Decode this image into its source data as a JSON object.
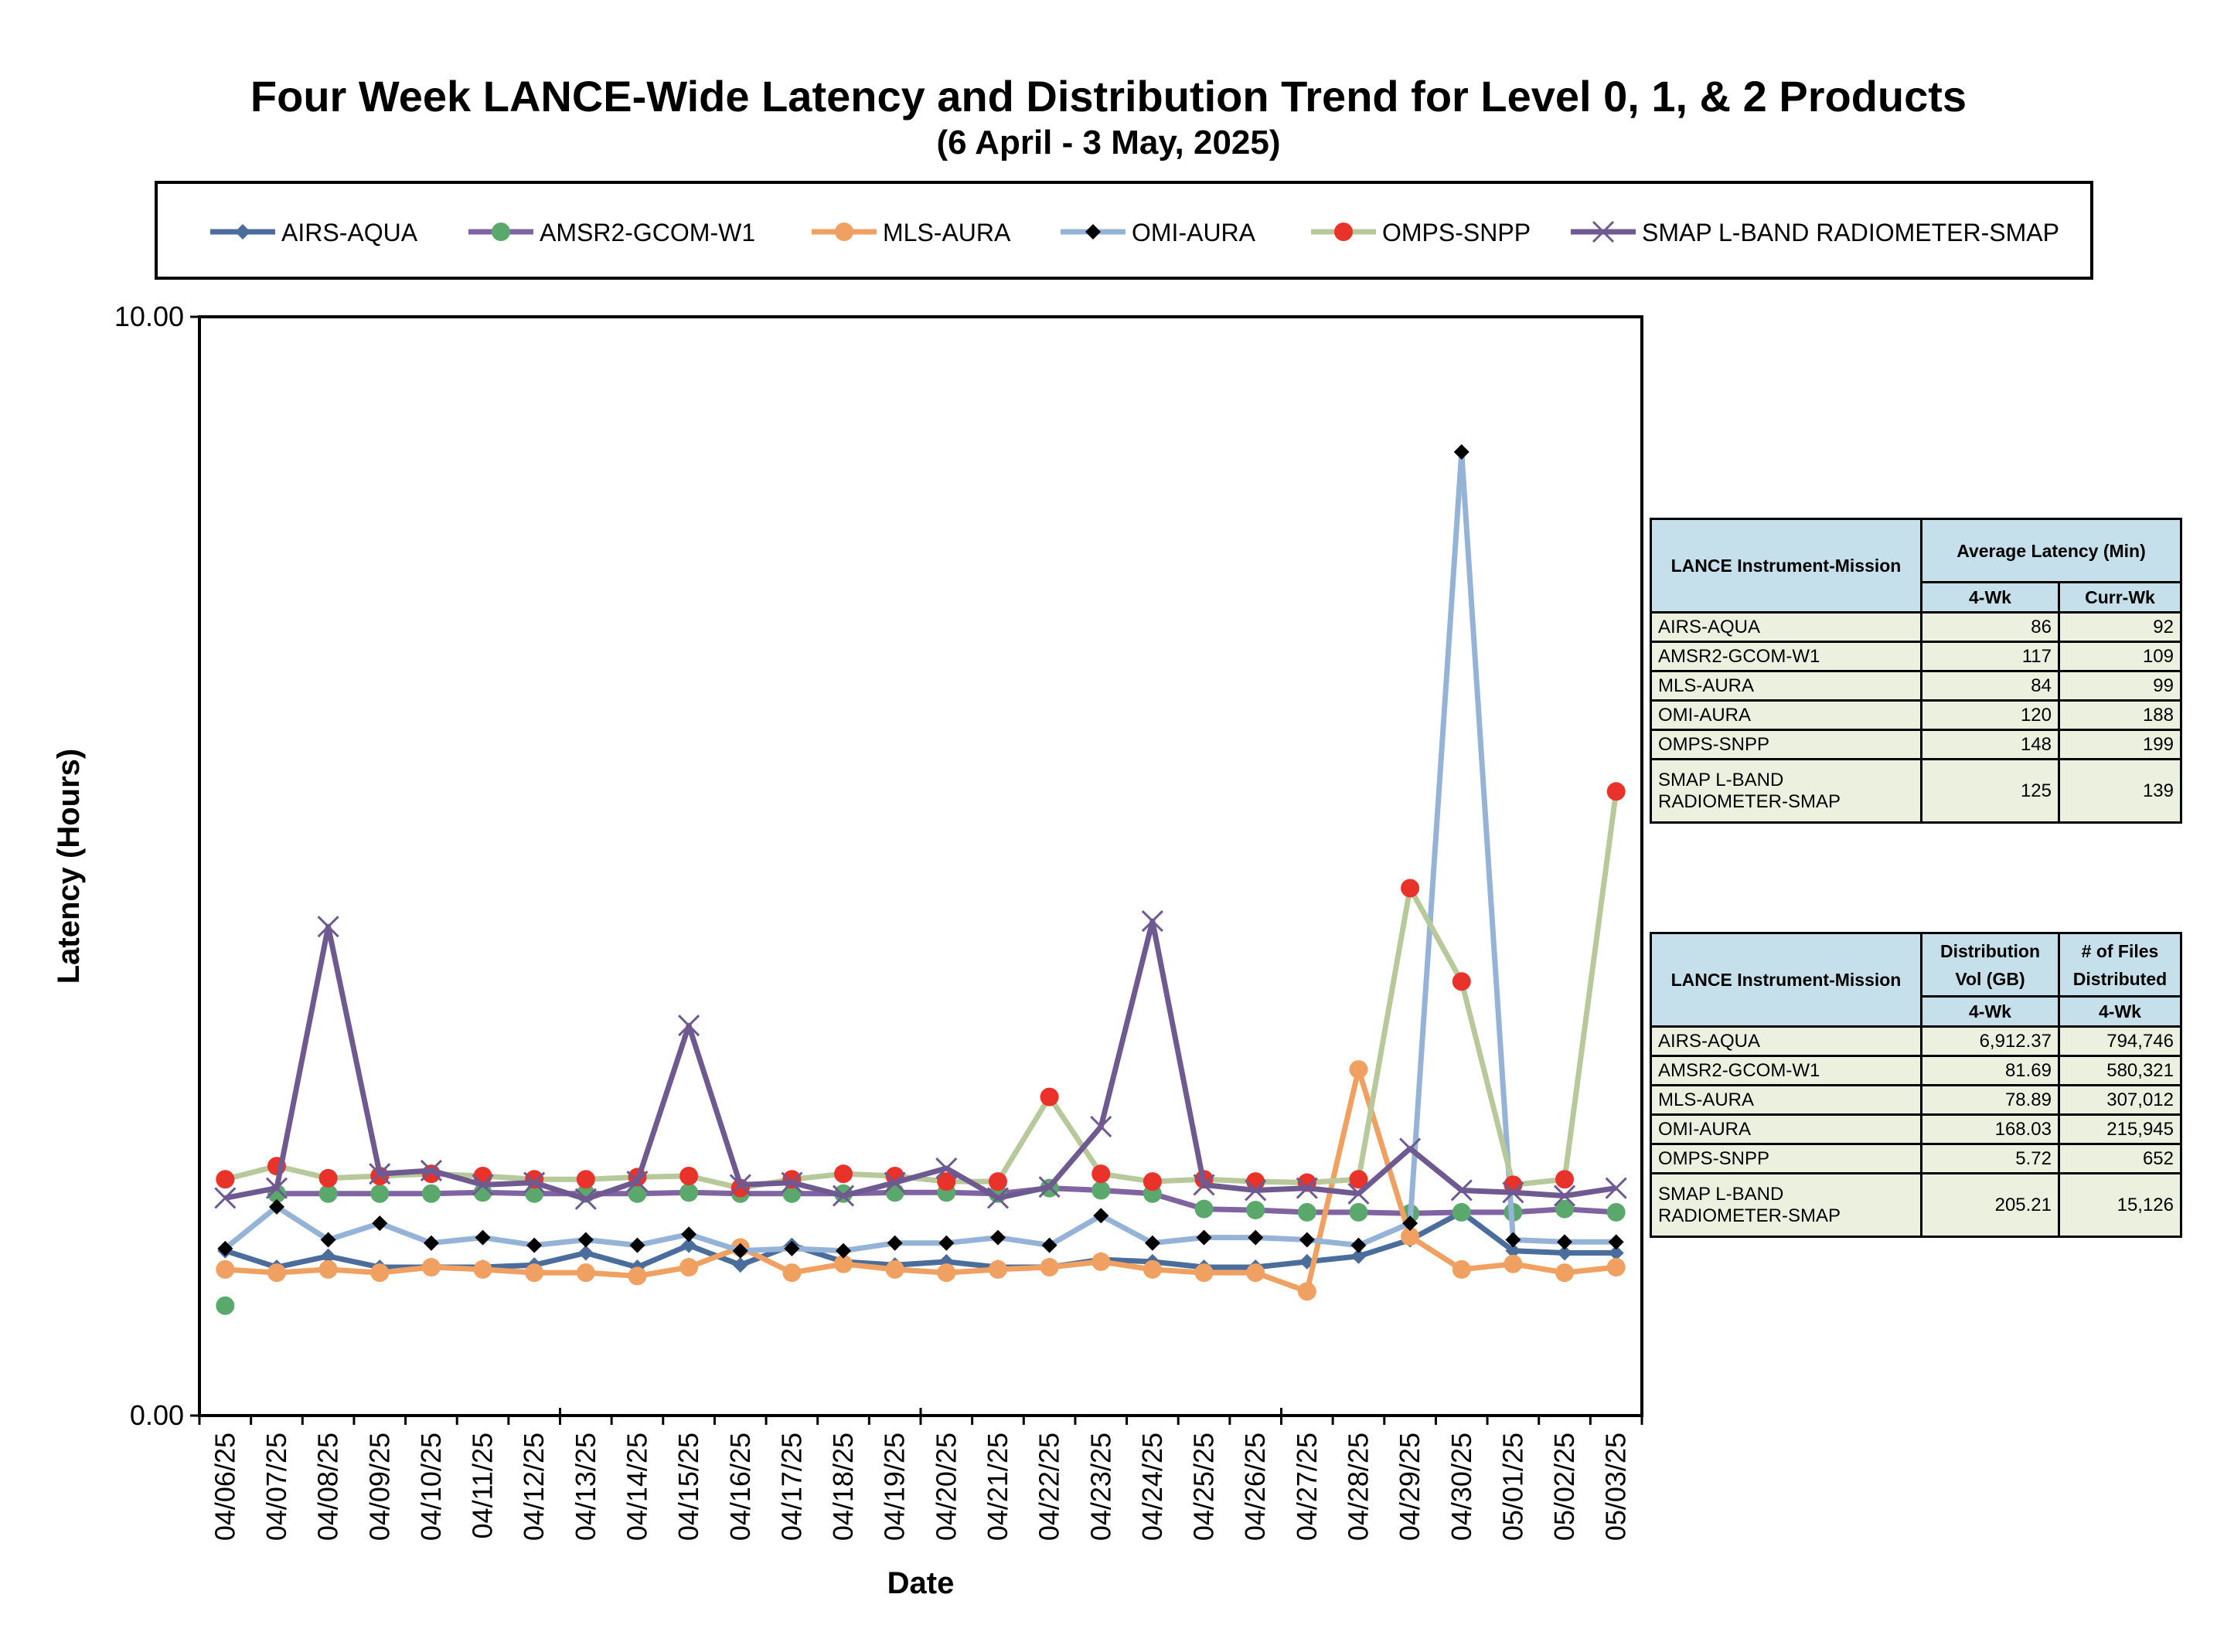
{
  "chart_data": {
    "type": "line",
    "title": "Four Week LANCE-Wide Latency and Distribution Trend for Level 0, 1, & 2 Products",
    "subtitle": "(6  April    -  3  May,  2025)",
    "xlabel": "Date",
    "ylabel": "Latency (Hours)",
    "ylim": [
      0,
      10
    ],
    "y_tick_labels": [
      "0.00",
      "10.00"
    ],
    "categories": [
      "04/06/25",
      "04/07/25",
      "04/08/25",
      "04/09/25",
      "04/10/25",
      "04/11/25",
      "04/12/25",
      "04/13/25",
      "04/14/25",
      "04/15/25",
      "04/16/25",
      "04/17/25",
      "04/18/25",
      "04/19/25",
      "04/20/25",
      "04/21/25",
      "04/22/25",
      "04/23/25",
      "04/24/25",
      "04/25/25",
      "04/26/25",
      "04/27/25",
      "04/28/25",
      "04/29/25",
      "04/30/25",
      "05/01/25",
      "05/02/25",
      "05/03/25"
    ],
    "legend_position": "top",
    "grid": false,
    "series": [
      {
        "name": "AIRS-AQUA",
        "color": "#4a6d9c",
        "marker": "diamond",
        "marker_color": "#4a6d9c",
        "values": [
          1.5,
          1.35,
          1.45,
          1.35,
          1.35,
          1.35,
          1.37,
          1.48,
          1.35,
          1.55,
          1.37,
          1.55,
          1.4,
          1.37,
          1.4,
          1.35,
          1.35,
          1.42,
          1.4,
          1.35,
          1.35,
          1.4,
          1.45,
          1.6,
          1.85,
          1.5,
          1.48,
          1.48
        ]
      },
      {
        "name": "AMSR2-GCOM-W1",
        "color": "#8064a2",
        "marker": "circle",
        "marker_color": "#5aa86c",
        "values": [
          1.0,
          2.02,
          2.02,
          2.02,
          2.02,
          2.03,
          2.02,
          2.02,
          2.02,
          2.03,
          2.02,
          2.02,
          2.02,
          2.03,
          2.03,
          2.02,
          2.07,
          2.05,
          2.02,
          1.88,
          1.87,
          1.85,
          1.85,
          1.84,
          1.85,
          1.85,
          1.88,
          1.85
        ]
      },
      {
        "name": "MLS-AURA",
        "color": "#f0a060",
        "marker": "circle",
        "marker_color": "#f0a060",
        "values": [
          1.33,
          1.3,
          1.33,
          1.3,
          1.35,
          1.33,
          1.3,
          1.3,
          1.27,
          1.35,
          1.53,
          1.3,
          1.38,
          1.33,
          1.3,
          1.33,
          1.35,
          1.4,
          1.33,
          1.3,
          1.3,
          1.13,
          3.15,
          1.63,
          1.33,
          1.38,
          1.3,
          1.35
        ]
      },
      {
        "name": "OMI-AURA",
        "color": "#95b3d7",
        "marker": "diamond",
        "marker_color": "#000000",
        "values": [
          1.52,
          1.9,
          1.6,
          1.75,
          1.57,
          1.62,
          1.55,
          1.6,
          1.55,
          1.65,
          1.5,
          1.52,
          1.5,
          1.57,
          1.57,
          1.62,
          1.55,
          1.82,
          1.57,
          1.62,
          1.62,
          1.6,
          1.55,
          1.75,
          8.77,
          1.6,
          1.58,
          1.58
        ]
      },
      {
        "name": "OMPS-SNPP",
        "color": "#b7c99b",
        "marker": "circle",
        "marker_color": "#e8322a",
        "values": [
          2.15,
          2.27,
          2.16,
          2.18,
          2.2,
          2.18,
          2.15,
          2.15,
          2.17,
          2.18,
          2.07,
          2.15,
          2.2,
          2.18,
          2.13,
          2.13,
          2.9,
          2.2,
          2.13,
          2.15,
          2.13,
          2.12,
          2.15,
          4.8,
          3.95,
          2.1,
          2.15,
          5.68
        ]
      },
      {
        "name": "SMAP L-BAND RADIOMETER-SMAP",
        "color": "#6e5a91",
        "marker": "x",
        "marker_color": "#6e5a91",
        "values": [
          1.98,
          2.07,
          4.45,
          2.2,
          2.23,
          2.1,
          2.12,
          1.97,
          2.13,
          3.55,
          2.1,
          2.12,
          2.0,
          2.12,
          2.25,
          1.98,
          2.08,
          2.63,
          4.5,
          2.1,
          2.05,
          2.07,
          2.02,
          2.43,
          2.05,
          2.03,
          2.0,
          2.07
        ]
      }
    ]
  },
  "latency_table": {
    "header_col1": "LANCE Instrument-Mission",
    "header_col2": "Average Latency (Min)",
    "sub_4wk": "4-Wk",
    "sub_currwk": "Curr-Wk",
    "rows": [
      {
        "name": "AIRS-AQUA",
        "wk4": "86",
        "curr": "92"
      },
      {
        "name": "AMSR2-GCOM-W1",
        "wk4": "117",
        "curr": "109"
      },
      {
        "name": "MLS-AURA",
        "wk4": "84",
        "curr": "99"
      },
      {
        "name": "OMI-AURA",
        "wk4": "120",
        "curr": "188"
      },
      {
        "name": "OMPS-SNPP",
        "wk4": "148",
        "curr": "199"
      },
      {
        "name": "SMAP L-BAND RADIOMETER-SMAP",
        "wk4": "125",
        "curr": "139"
      }
    ]
  },
  "distribution_table": {
    "header_col1": "LANCE Instrument-Mission",
    "header_col2": "Distribution Vol (GB)",
    "header_col3": "# of Files Distributed",
    "sub_col2": "4-Wk",
    "sub_col3": "4-Wk",
    "rows": [
      {
        "name": "AIRS-AQUA",
        "vol": "6,912.37",
        "files": "794,746"
      },
      {
        "name": "AMSR2-GCOM-W1",
        "vol": "81.69",
        "files": "580,321"
      },
      {
        "name": "MLS-AURA",
        "vol": "78.89",
        "files": "307,012"
      },
      {
        "name": "OMI-AURA",
        "vol": "168.03",
        "files": "215,945"
      },
      {
        "name": "OMPS-SNPP",
        "vol": "5.72",
        "files": "652"
      },
      {
        "name": "SMAP L-BAND RADIOMETER-SMAP",
        "vol": "205.21",
        "files": "15,126"
      }
    ]
  }
}
